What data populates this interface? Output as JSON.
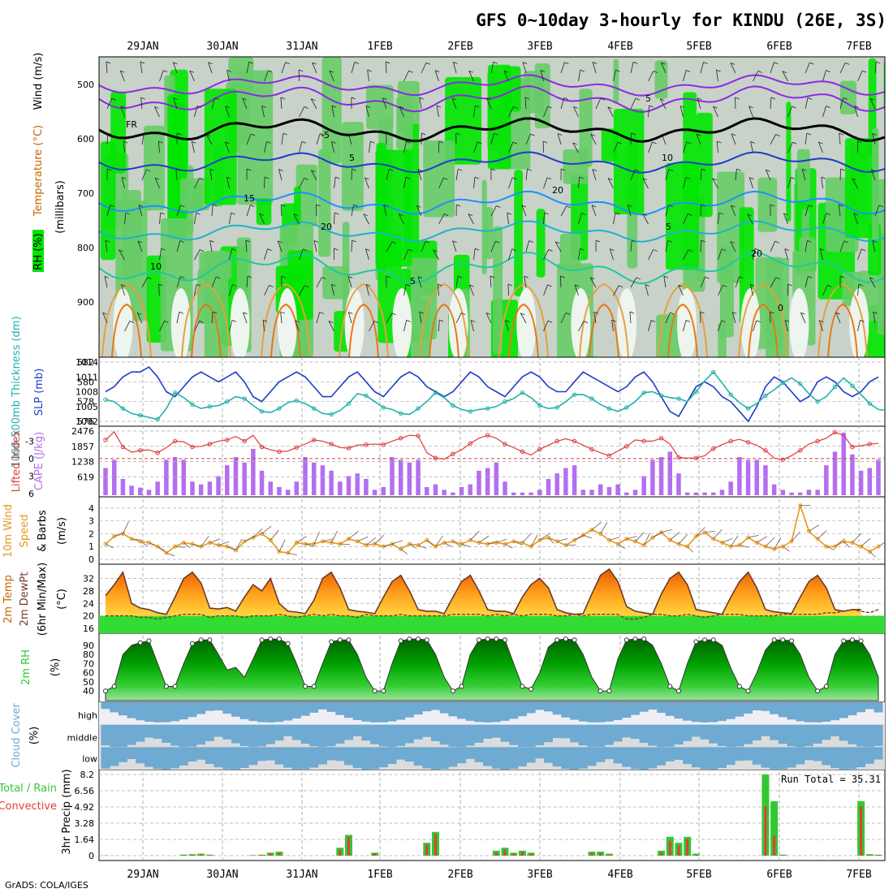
{
  "title": "GFS 0~10day 3-hourly for KINDU (26E, 3S)",
  "footer": "GrADS: COLA/IGES",
  "run_total_label": "Run Total = 35.31",
  "dates": [
    "29JAN",
    "30JAN",
    "31JAN",
    "1FEB",
    "2FEB",
    "3FEB",
    "4FEB",
    "5FEB",
    "6FEB",
    "7FEB"
  ],
  "colors": {
    "rh_green": "#00e600",
    "rh_mid": "#66cc66",
    "rh_gray": "#c8d2c8",
    "slp": "#1e3cc8",
    "thickness": "#20b2aa",
    "lifted_index": "#dc3c3c",
    "cape": "#b46ef0",
    "wind": "#e6961e",
    "cloud": "#6eaad2",
    "precip_total": "#32c832",
    "precip_conv": "#e63c3c"
  },
  "panel_labels": {
    "upper": {
      "rh": "RH (%)",
      "temperature": "Temperature (°C)",
      "wind": "Wind (m/s)",
      "units": "(millibars)"
    },
    "slp": {
      "thickness": "1000-500mb Thickness (dm)",
      "slp": "SLP (mb)"
    },
    "cape": {
      "li": "Lifted Index",
      "cape": "CAPE (J/kg)"
    },
    "wind10": {
      "name": "10m Wind",
      "speed": "Speed",
      "barbs": "& Barbs",
      "units": "(m/s)"
    },
    "temp2m": {
      "a": "2m Temp",
      "b": "2m DewPt",
      "c": "(6hr Min/Max)",
      "units": "(°C)"
    },
    "rh2m": {
      "name": "2m RH",
      "units": "(%)"
    },
    "cloud": {
      "name": "Cloud Cover",
      "units": "(%)",
      "high": "high",
      "middle": "middle",
      "low": "low"
    },
    "precip": {
      "total": "Total / Rain",
      "conv": "Convective",
      "name": "3hr Precip (mm)"
    }
  },
  "axes": {
    "pressure_ticks": [
      "500",
      "600",
      "700",
      "800",
      "900"
    ],
    "thickness_ticks": [
      "582",
      "580",
      "578",
      "576"
    ],
    "slp_ticks": [
      "1014",
      "1011",
      "1008",
      "1005",
      "1002"
    ],
    "li_ticks": [
      "-3",
      "0",
      "3",
      "6"
    ],
    "cape_ticks": [
      "2476",
      "1857",
      "1238",
      "619"
    ],
    "wind_ticks": [
      "4",
      "3",
      "2",
      "1",
      "0"
    ],
    "temp_ticks": [
      "32",
      "28",
      "24",
      "20",
      "16"
    ],
    "rh_ticks": [
      "90",
      "80",
      "70",
      "60",
      "50",
      "40"
    ],
    "precip_ticks": [
      "8.2",
      "6.56",
      "4.92",
      "3.28",
      "1.64",
      "0"
    ]
  },
  "contour_labels": [
    "5",
    "FR",
    "-5",
    "5",
    "10",
    "15",
    "20",
    "20",
    "5",
    "10",
    "5",
    "20",
    "0"
  ],
  "chart_data": [
    {
      "type": "line",
      "title": "1000-500mb Thickness (dm) & SLP (mb)",
      "x_unit": "3-hourly steps from 28JAN",
      "series": [
        {
          "name": "SLP (mb)",
          "ylim": [
            1002,
            1014
          ],
          "values": [
            1008,
            1009,
            1011,
            1012,
            1012,
            1013,
            1011,
            1008,
            1007,
            1009,
            1011,
            1012,
            1011,
            1010,
            1011,
            1012,
            1010,
            1007,
            1006,
            1008,
            1010,
            1011,
            1012,
            1011,
            1009,
            1007,
            1007,
            1009,
            1011,
            1012,
            1010,
            1008,
            1007,
            1009,
            1011,
            1012,
            1011,
            1009,
            1008,
            1007,
            1008,
            1010,
            1012,
            1011,
            1009,
            1008,
            1007,
            1009,
            1011,
            1012,
            1011,
            1009,
            1008,
            1008,
            1010,
            1012,
            1011,
            1010,
            1009,
            1008,
            1009,
            1011,
            1012,
            1010,
            1007,
            1004,
            1003,
            1006,
            1009,
            1010,
            1009,
            1007,
            1006,
            1004,
            1002,
            1005,
            1009,
            1011,
            1010,
            1008,
            1006,
            1007,
            1010,
            1011,
            1010,
            1008,
            1007,
            1008,
            1010,
            1011
          ]
        },
        {
          "name": "1000-500mb Thickness (dm)",
          "ylim": [
            576,
            582
          ],
          "values": [
            578.2,
            578.0,
            577.3,
            576.8,
            576.6,
            576.4,
            576.2,
            577.3,
            578.9,
            578.4,
            577.7,
            577.3,
            577.5,
            577.6,
            578.0,
            578.5,
            578.3,
            577.6,
            577.0,
            576.9,
            577.3,
            577.9,
            578.1,
            577.8,
            577.3,
            576.8,
            576.7,
            577.1,
            577.8,
            578.8,
            578.6,
            578.0,
            577.4,
            577.2,
            576.8,
            576.7,
            577.3,
            578.0,
            578.9,
            578.4,
            577.6,
            577.2,
            577.0,
            577.2,
            577.3,
            577.5,
            578.0,
            578.3,
            578.9,
            578.4,
            577.6,
            577.3,
            577.4,
            578.0,
            578.7,
            578.7,
            578.3,
            577.7,
            577.3,
            577.0,
            577.4,
            578.0,
            578.9,
            579.0,
            578.6,
            578.4,
            578.3,
            578.0,
            579.0,
            580.1,
            581.0,
            579.9,
            578.7,
            577.9,
            577.3,
            577.8,
            578.6,
            579.2,
            579.9,
            580.4,
            579.8,
            578.8,
            578.0,
            578.5,
            579.5,
            580.4,
            579.6,
            578.7,
            577.8,
            577.2,
            577.1,
            577.0
          ]
        }
      ]
    },
    {
      "type": "bar",
      "title": "Lifted Index & CAPE (J/kg)",
      "x_unit": "3-hourly steps from 28JAN",
      "series": [
        {
          "name": "CAPE (J/kg)",
          "ylim": [
            0,
            2476
          ],
          "values": [
            1000,
            1300,
            600,
            350,
            280,
            200,
            500,
            1300,
            1400,
            1300,
            500,
            400,
            500,
            700,
            1100,
            1400,
            1200,
            1700,
            900,
            500,
            300,
            200,
            500,
            1400,
            1200,
            1100,
            900,
            500,
            700,
            800,
            600,
            200,
            300,
            1400,
            1300,
            1200,
            1300,
            300,
            400,
            200,
            100,
            300,
            400,
            900,
            1000,
            1200,
            500,
            100,
            100,
            100,
            200,
            600,
            800,
            1000,
            1100,
            200,
            200,
            400,
            300,
            400,
            100,
            200,
            700,
            1300,
            1400,
            1600,
            800,
            100,
            100,
            100,
            100,
            200,
            500,
            1400,
            1300,
            1300,
            1100,
            400,
            200,
            100,
            100,
            200,
            200,
            1100,
            1600,
            2300,
            1500,
            900,
            1000,
            1300
          ]
        },
        {
          "name": "Lifted Index",
          "ylim": [
            6,
            -5
          ],
          "values": [
            -3.2,
            -4.6,
            -2.0,
            -1.1,
            -1.4,
            -1.5,
            -1.0,
            -1.9,
            -3.0,
            -2.9,
            -2.0,
            -2.1,
            -2.5,
            -3.0,
            -3.2,
            -3.8,
            -3.0,
            -4.0,
            -2.0,
            -1.5,
            -1.2,
            -1.3,
            -1.9,
            -2.5,
            -3.2,
            -3.0,
            -2.5,
            -1.9,
            -1.8,
            -2.3,
            -2.4,
            -2.5,
            -2.4,
            -3.0,
            -3.5,
            -4.0,
            -3.9,
            -1.0,
            -0.1,
            0.1,
            -0.8,
            -1.5,
            -2.6,
            -3.5,
            -4.0,
            -3.5,
            -2.5,
            -1.9,
            -1.2,
            -0.6,
            -1.6,
            -2.3,
            -3.0,
            -3.4,
            -3.0,
            -2.3,
            -1.6,
            -1.0,
            -0.5,
            -1.3,
            -2.1,
            -3.2,
            -3.0,
            -3.0,
            -3.5,
            -2.5,
            -0.2,
            -0.1,
            -0.1,
            -0.5,
            -1.7,
            -2.4,
            -3.0,
            -3.3,
            -2.8,
            -2.3,
            -1.4,
            -0.1,
            0.2,
            -0.5,
            -1.4,
            -2.5,
            -3.0,
            -3.5,
            -4.5,
            -4.0,
            -2.0,
            -2.2,
            -2.5,
            -2.6
          ]
        }
      ]
    },
    {
      "type": "line",
      "title": "10m Wind Speed (m/s)",
      "ylim": [
        0,
        4.5
      ],
      "series": [
        {
          "name": "10m Wind Speed",
          "values": [
            1.2,
            1.8,
            2.0,
            1.6,
            1.4,
            1.3,
            1.0,
            0.5,
            1.0,
            1.3,
            1.2,
            1.0,
            1.3,
            1.1,
            1.0,
            0.7,
            1.4,
            1.7,
            2.0,
            1.5,
            0.6,
            0.5,
            1.3,
            1.2,
            1.2,
            1.4,
            1.3,
            1.2,
            1.6,
            1.4,
            1.1,
            1.2,
            1.0,
            1.2,
            0.8,
            1.2,
            1.1,
            1.5,
            1.0,
            1.3,
            1.4,
            1.2,
            1.5,
            1.3,
            1.2,
            1.3,
            1.2,
            1.4,
            1.3,
            1.0,
            1.5,
            1.7,
            1.4,
            1.1,
            1.5,
            1.9,
            2.3,
            2.0,
            1.5,
            1.2,
            1.6,
            1.4,
            1.1,
            1.7,
            2.1,
            1.5,
            1.2,
            1.0,
            1.8,
            2.1,
            1.6,
            1.3,
            1.0,
            1.1,
            1.7,
            1.3,
            1.0,
            0.8,
            1.0,
            1.4,
            4.2,
            2.2,
            1.6,
            1.0,
            1.0,
            1.4,
            1.3,
            1.0,
            0.6,
            1.0
          ]
        }
      ]
    },
    {
      "type": "area",
      "title": "2m Temp & DewPt (°C)",
      "ylim": [
        16,
        35
      ],
      "series": [
        {
          "name": "2m Temp",
          "values": [
            26.5,
            30,
            34,
            24,
            22.5,
            22,
            21,
            20.5,
            26,
            32,
            34,
            30.5,
            22.5,
            22.2,
            22.7,
            21.5,
            26,
            30,
            28,
            32,
            24,
            21.5,
            21.2,
            20.7,
            25,
            32,
            34,
            29,
            22,
            21.5,
            21.2,
            20.7,
            26,
            31,
            33,
            28,
            22,
            21.5,
            21.5,
            20.7,
            26,
            31,
            33,
            28,
            22,
            21.5,
            21.5,
            20.7,
            26,
            30,
            32,
            29,
            22,
            21,
            20.5,
            20.7,
            27,
            33,
            35,
            31,
            23,
            21.5,
            21,
            20.5,
            27,
            32,
            34,
            30,
            22,
            21.5,
            21,
            20.5,
            26,
            31,
            34,
            29,
            22,
            21.3,
            21,
            20.7,
            26,
            31,
            33,
            29,
            22,
            21.5,
            22,
            22
          ]
        },
        {
          "name": "2m DewPt",
          "values": [
            20,
            20,
            20,
            20,
            19.5,
            19.5,
            19,
            19.5,
            20,
            20.5,
            20.5,
            20.5,
            19.5,
            20,
            20,
            20,
            19.5,
            20,
            20,
            20,
            20.5,
            20,
            19.5,
            20,
            20.5,
            20,
            20.5,
            20,
            20,
            19.5,
            20.5,
            20,
            20,
            20,
            20.5,
            20,
            20,
            20,
            20,
            20,
            20.5,
            20.5,
            20.5,
            20.5,
            20,
            20.5,
            20,
            20.5,
            20,
            20.5,
            20.5,
            20.5,
            20,
            20,
            20.5,
            20,
            20.5,
            20.5,
            20.5,
            20.5,
            19,
            19,
            19.5,
            20.5,
            20.5,
            20,
            20,
            20.5,
            20,
            19.5,
            20,
            20.5,
            20.5,
            20.5,
            20,
            20,
            20,
            20,
            20.5,
            20.5,
            20.5,
            20.5,
            20.5,
            21,
            21,
            21.5,
            22,
            21.5,
            21,
            22
          ]
        }
      ]
    },
    {
      "type": "area",
      "title": "2m RH (%)",
      "ylim": [
        33,
        98
      ],
      "series": [
        {
          "name": "2m RH",
          "values": [
            40,
            45,
            80,
            90,
            93,
            95,
            70,
            45,
            45,
            70,
            92,
            96,
            96,
            80,
            63,
            66,
            55,
            75,
            96,
            97,
            97,
            92,
            70,
            45,
            45,
            70,
            94,
            96,
            96,
            80,
            55,
            40,
            40,
            70,
            95,
            97,
            97,
            96,
            80,
            55,
            40,
            45,
            80,
            96,
            97,
            97,
            96,
            70,
            45,
            42,
            60,
            88,
            96,
            97,
            96,
            80,
            55,
            40,
            40,
            75,
            96,
            97,
            97,
            90,
            70,
            45,
            40,
            70,
            94,
            96,
            96,
            90,
            65,
            45,
            40,
            60,
            85,
            96,
            96,
            95,
            80,
            55,
            40,
            45,
            80,
            95,
            96,
            95,
            80,
            55
          ]
        }
      ]
    },
    {
      "type": "bar",
      "title": "3hr Precip (mm)",
      "ylim": [
        0,
        8.2
      ],
      "x_unit": "3-hourly steps from 28JAN",
      "series": [
        {
          "name": "Total / Rain",
          "values": [
            0.02,
            0,
            0,
            0,
            0,
            0,
            0,
            0,
            0,
            0.1,
            0.15,
            0.2,
            0.1,
            0,
            0,
            0,
            0,
            0.05,
            0.1,
            0.3,
            0.4,
            0,
            0,
            0,
            0,
            0,
            0,
            0.8,
            2.1,
            0,
            0,
            0.3,
            0,
            0,
            0,
            0,
            0,
            1.3,
            2.4,
            0,
            0,
            0,
            0,
            0,
            0,
            0.5,
            0.8,
            0.3,
            0.5,
            0.3,
            0,
            0,
            0,
            0,
            0,
            0,
            0.4,
            0.4,
            0.2,
            0,
            0,
            0,
            0,
            0,
            0.5,
            1.9,
            1.3,
            1.9,
            0.2,
            0,
            0,
            0,
            0,
            0,
            0,
            0,
            8.2,
            5.5,
            0.1,
            0,
            0,
            0,
            0,
            0,
            0,
            0,
            0,
            5.5,
            0.15,
            0.1
          ]
        },
        {
          "name": "Convective",
          "values": [
            0.02,
            0,
            0,
            0,
            0,
            0,
            0,
            0,
            0,
            0.1,
            0.1,
            0.15,
            0.05,
            0,
            0,
            0,
            0,
            0.05,
            0.08,
            0.25,
            0.3,
            0,
            0,
            0,
            0,
            0,
            0,
            0.6,
            1.9,
            0,
            0,
            0.25,
            0,
            0,
            0,
            0,
            0,
            1.1,
            2.2,
            0,
            0,
            0,
            0,
            0,
            0,
            0.3,
            0.6,
            0.2,
            0.4,
            0.2,
            0,
            0,
            0,
            0,
            0,
            0,
            0.3,
            0.3,
            0.1,
            0,
            0,
            0,
            0,
            0,
            0.3,
            1.5,
            1.0,
            1.7,
            0.1,
            0,
            0,
            0,
            0,
            0,
            0,
            0,
            5.0,
            2.0,
            0.05,
            0,
            0,
            0,
            0,
            0,
            0,
            0,
            0,
            5.0,
            0.1,
            0.05
          ]
        }
      ]
    }
  ]
}
